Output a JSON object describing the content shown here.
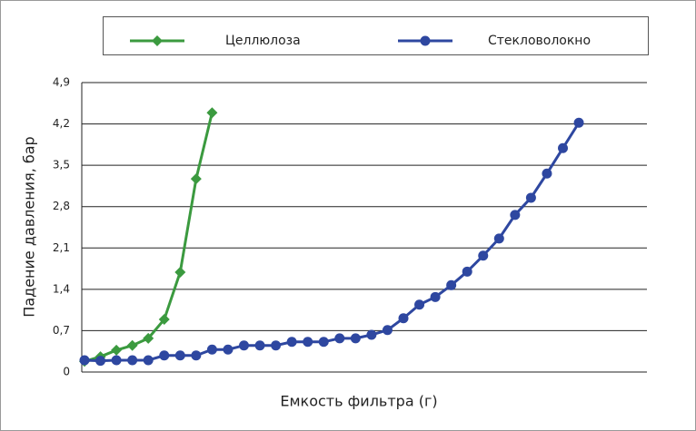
{
  "chart_data": {
    "type": "line",
    "y_label": "Падение давления, бар",
    "x_label": "Емкость фильтра (г)",
    "categories": [
      null,
      null,
      null,
      null,
      null,
      null,
      null,
      null,
      null,
      null,
      null,
      null,
      null,
      null,
      null,
      null,
      null,
      null,
      null,
      null,
      null,
      null,
      null,
      null,
      null,
      null,
      null,
      null,
      null,
      null,
      null,
      null
    ],
    "series": [
      {
        "name": "Целлюлоза",
        "color": "#3b9a3f",
        "marker": "diamond",
        "values": [
          0.18,
          0.26,
          0.37,
          0.45,
          0.57,
          0.89,
          1.69,
          3.27,
          4.39,
          null,
          null,
          null,
          null,
          null,
          null,
          null,
          null,
          null,
          null,
          null,
          null,
          null,
          null,
          null,
          null,
          null,
          null,
          null,
          null,
          null,
          null,
          null
        ]
      },
      {
        "name": "Стекловолокно",
        "color": "#2e47a0",
        "marker": "circle",
        "values": [
          0.2,
          0.19,
          0.2,
          0.2,
          0.2,
          0.28,
          0.28,
          0.28,
          0.38,
          0.38,
          0.45,
          0.45,
          0.45,
          0.51,
          0.51,
          0.51,
          0.57,
          0.57,
          0.63,
          0.71,
          0.91,
          1.14,
          1.27,
          1.47,
          1.7,
          1.97,
          2.26,
          2.66,
          2.95,
          3.36,
          3.79,
          4.22
        ]
      }
    ],
    "ylim": [
      0,
      4.9
    ],
    "yticks": [
      0,
      {
        "value": 0.7,
        "label": "0,7"
      },
      {
        "value": 1.4,
        "label": "1,4"
      },
      {
        "value": 2.1,
        "label": "2,1"
      },
      {
        "value": 2.8,
        "label": "2,8"
      },
      {
        "value": 3.5,
        "label": "3,5"
      },
      {
        "value": 4.2,
        "label": "4,2"
      },
      {
        "value": 4.9,
        "label": "4,9"
      }
    ],
    "grid": true
  }
}
